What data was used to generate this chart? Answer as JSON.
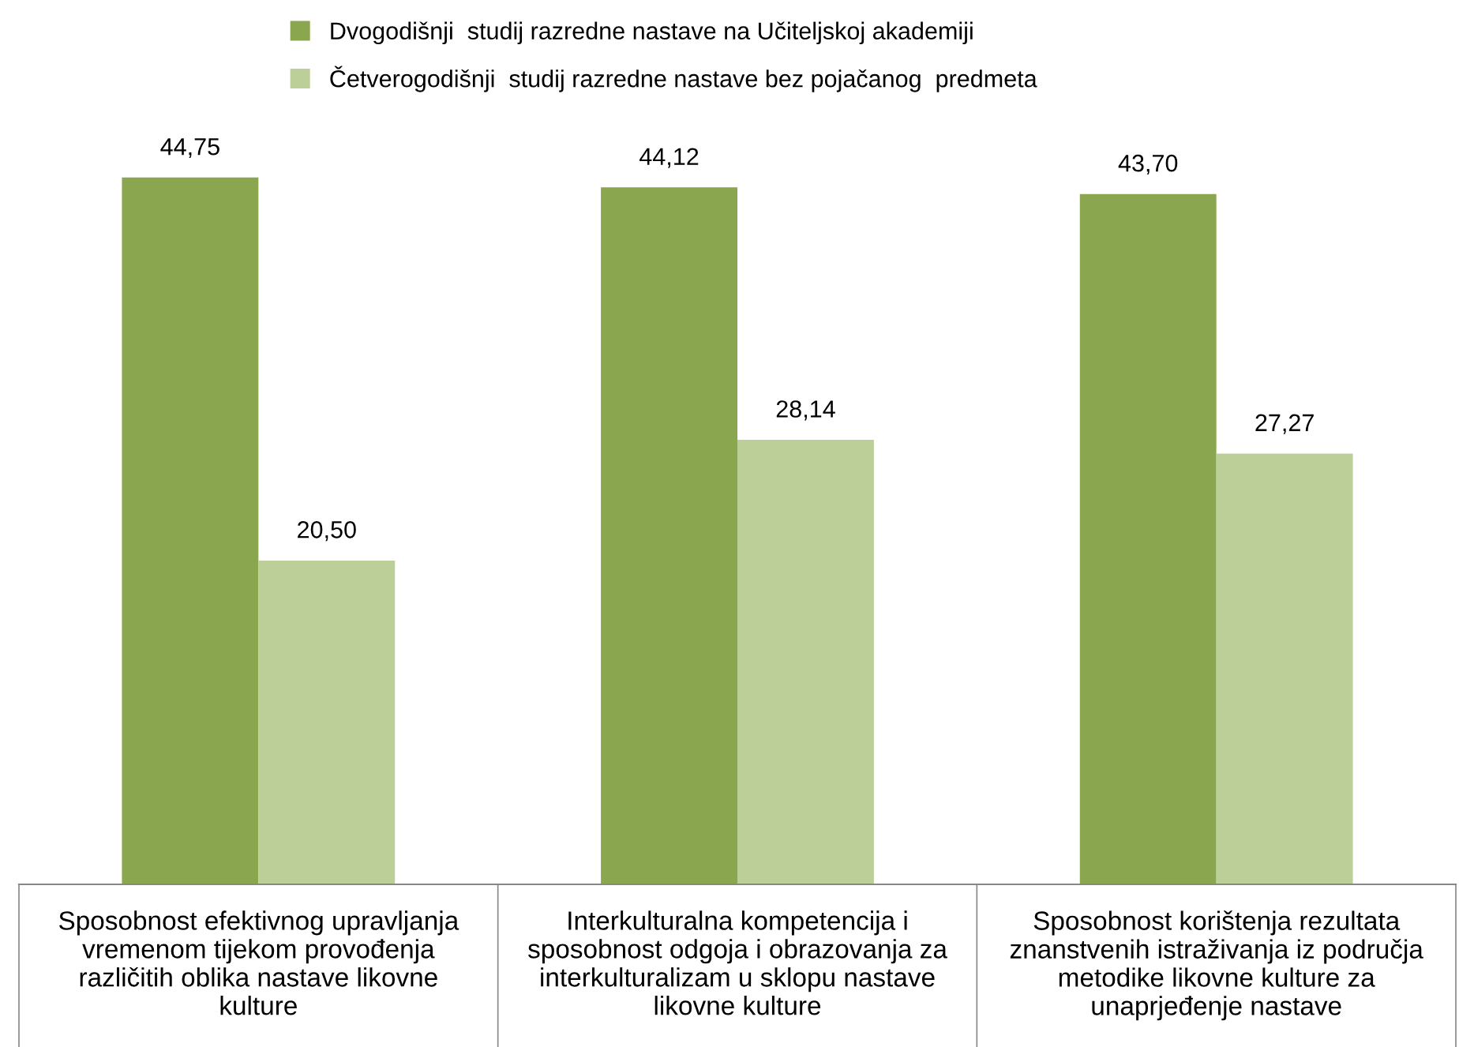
{
  "chart_data": {
    "type": "bar",
    "categories": [
      "Sposobnost efektivnog upravljanja\nvremenom tijekom provođenja\nrazličitih oblika nastave likovne\nkulture",
      "Interkulturalna kompetencija i\nsposobnost odgoja i obrazovanja za\ninterkulturalizam u sklopu nastave\nlikovne kulture",
      "Sposobnost korištenja rezultata\nznanstvenih istraživanja iz područja\nmetodike likovne kulture za\nunaprjeđenje nastave"
    ],
    "series": [
      {
        "name": "Dvogodišnji  studij razredne nastave na Učiteljskoj akademiji",
        "color": "#8aa64e",
        "values": [
          44.75,
          44.12,
          43.7
        ],
        "value_labels": [
          "44,75",
          "44,12",
          "43,70"
        ]
      },
      {
        "name": "Četverogodišnji  studij razredne nastave bez pojačanog  predmeta",
        "color": "#bccf98",
        "values": [
          20.5,
          28.14,
          27.27
        ],
        "value_labels": [
          "20,50",
          "28,14",
          "27,27"
        ]
      }
    ],
    "legend": "top",
    "grid": false
  }
}
